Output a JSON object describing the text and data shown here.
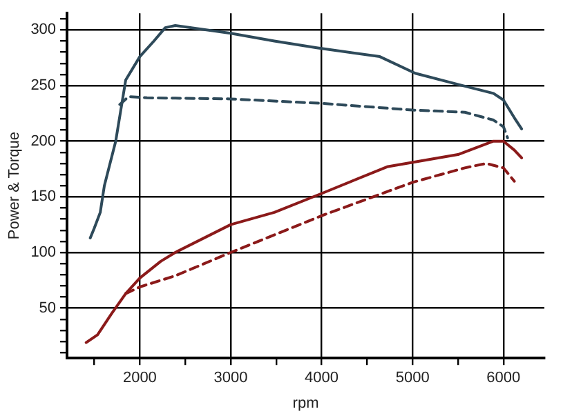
{
  "chart_data": {
    "type": "line",
    "xlabel": "rpm",
    "ylabel": "Power & Torque",
    "xlim": [
      1200,
      6450
    ],
    "ylim": [
      5,
      315
    ],
    "xticks": [
      {
        "value": 1500,
        "label": null
      },
      2000,
      {
        "value": 2500,
        "label": null
      },
      3000,
      {
        "value": 3500,
        "label": null
      },
      4000,
      {
        "value": 4500,
        "label": null
      },
      5000,
      {
        "value": 5500,
        "label": null
      },
      6000
    ],
    "yticks": [
      {
        "value": 10,
        "label": null
      },
      {
        "value": 20,
        "label": null
      },
      {
        "value": 30,
        "label": null
      },
      {
        "value": 40,
        "label": null
      },
      50,
      {
        "value": 60,
        "label": null
      },
      {
        "value": 70,
        "label": null
      },
      {
        "value": 80,
        "label": null
      },
      {
        "value": 90,
        "label": null
      },
      100,
      {
        "value": 110,
        "label": null
      },
      {
        "value": 120,
        "label": null
      },
      {
        "value": 130,
        "label": null
      },
      {
        "value": 140,
        "label": null
      },
      150,
      {
        "value": 160,
        "label": null
      },
      {
        "value": 170,
        "label": null
      },
      {
        "value": 180,
        "label": null
      },
      {
        "value": 190,
        "label": null
      },
      200,
      {
        "value": 210,
        "label": null
      },
      {
        "value": 220,
        "label": null
      },
      {
        "value": 230,
        "label": null
      },
      {
        "value": 240,
        "label": null
      },
      250,
      {
        "value": 260,
        "label": null
      },
      {
        "value": 270,
        "label": null
      },
      {
        "value": 280,
        "label": null
      },
      {
        "value": 290,
        "label": null
      },
      300,
      {
        "value": 310,
        "label": null
      }
    ],
    "grid": true,
    "legend": false,
    "marker": "none",
    "series": [
      {
        "color": "#2e4a5a",
        "line_style": "solid",
        "x": [
          1455,
          1500,
          1565,
          1610,
          1735,
          1845,
          2000,
          2155,
          2280,
          2390,
          3000,
          3480,
          3945,
          4640,
          5030,
          5500,
          5890,
          6000,
          6120,
          6200
        ],
        "values": [
          113,
          122,
          136,
          160,
          200,
          255,
          276,
          290,
          302,
          304,
          297,
          290,
          284,
          276,
          261,
          251,
          243,
          237,
          221,
          211
        ]
      },
      {
        "color": "#2e4a5a",
        "line_style": "dashed",
        "x": [
          1780,
          1875,
          2080,
          3000,
          4000,
          5000,
          5575,
          5890,
          6000,
          6045
        ],
        "values": [
          233,
          240,
          239,
          238,
          234,
          228,
          226,
          219,
          213,
          203
        ]
      },
      {
        "color": "#8b1a1a",
        "line_style": "solid",
        "x": [
          1410,
          1535,
          1690,
          1845,
          2000,
          2230,
          2390,
          3000,
          3480,
          4000,
          4720,
          5500,
          5890,
          6000,
          6120,
          6200
        ],
        "values": [
          19,
          26,
          45,
          63,
          77,
          92,
          100,
          125,
          136,
          153,
          177,
          188,
          200,
          200,
          192,
          185
        ]
      },
      {
        "color": "#8b1a1a",
        "line_style": "dashed",
        "x": [
          1845,
          2000,
          2390,
          3000,
          4000,
          5000,
          5575,
          5810,
          6000,
          6120
        ],
        "values": [
          63,
          69,
          79,
          100,
          133,
          163,
          176,
          180,
          176,
          164
        ]
      }
    ]
  }
}
